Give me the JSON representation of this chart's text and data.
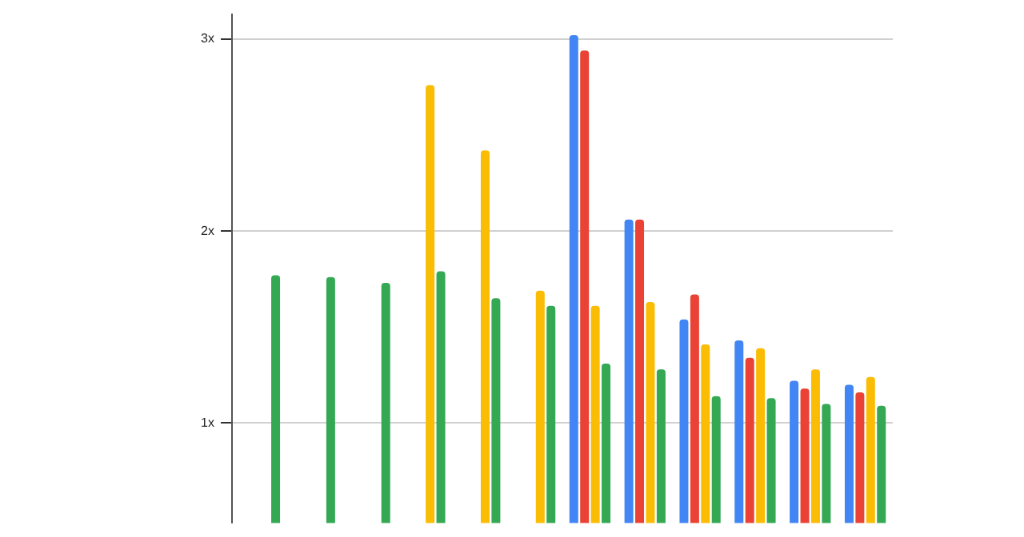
{
  "chart_data": {
    "type": "bar",
    "categories": [
      null,
      null,
      null,
      null,
      null,
      null,
      null,
      null,
      null,
      null,
      null,
      null
    ],
    "series": [
      {
        "color": "#4285f4",
        "values": [
          null,
          null,
          null,
          null,
          null,
          null,
          3.02,
          2.06,
          1.54,
          1.43,
          1.22,
          1.2
        ]
      },
      {
        "color": "#ea4335",
        "values": [
          null,
          null,
          null,
          null,
          null,
          null,
          2.94,
          2.06,
          1.67,
          1.34,
          1.18,
          1.16
        ]
      },
      {
        "color": "#fbbc04",
        "values": [
          null,
          null,
          null,
          2.76,
          2.42,
          1.69,
          1.61,
          1.63,
          1.41,
          1.39,
          1.28,
          1.24
        ]
      },
      {
        "color": "#34a853",
        "values": [
          1.77,
          1.76,
          1.73,
          1.79,
          1.65,
          1.61,
          1.31,
          1.28,
          1.14,
          1.13,
          1.1,
          1.09
        ]
      }
    ],
    "ylim": [
      0.48,
      3.13
    ],
    "yticks": [
      {
        "value": 1,
        "label": "1x"
      },
      {
        "value": 2,
        "label": "2x"
      },
      {
        "value": 3,
        "label": "3x"
      }
    ],
    "grid": "y",
    "legend": false,
    "tick_labels": "y"
  }
}
